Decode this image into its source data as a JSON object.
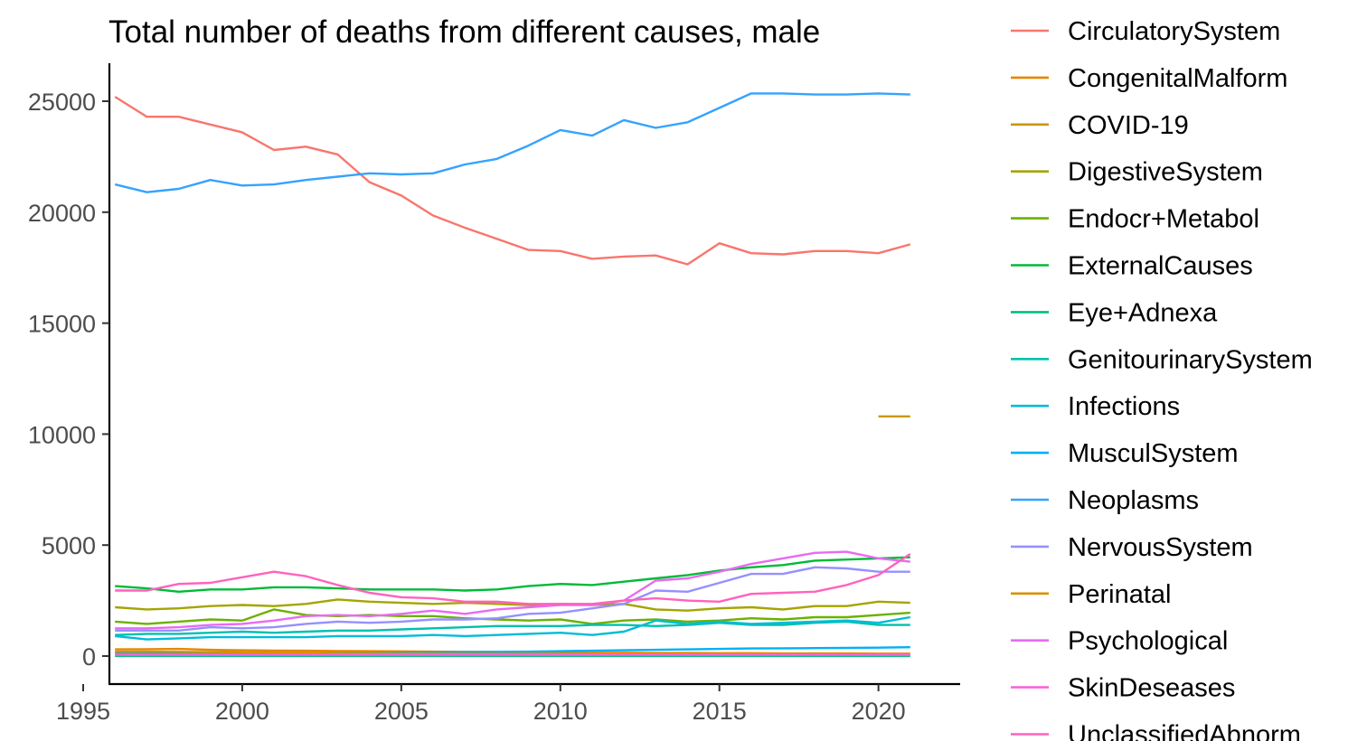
{
  "chart_data": {
    "type": "line",
    "title": "Total number of deaths from different causes, male",
    "xlabel": "",
    "ylabel": "",
    "xlim": [
      1995,
      2022
    ],
    "ylim": [
      -1000,
      26500
    ],
    "x_ticks": [
      1995,
      2000,
      2005,
      2010,
      2015,
      2020
    ],
    "y_ticks": [
      0,
      5000,
      10000,
      15000,
      20000,
      25000
    ],
    "grid": false,
    "legend_position": "right",
    "x": [
      1996,
      1997,
      1998,
      1999,
      2000,
      2001,
      2002,
      2003,
      2004,
      2005,
      2006,
      2007,
      2008,
      2009,
      2010,
      2011,
      2012,
      2013,
      2014,
      2015,
      2016,
      2017,
      2018,
      2019,
      2020,
      2021
    ],
    "series": [
      {
        "name": "CirculatorySystem",
        "color": "#F8766D",
        "values": [
          25200,
          24300,
          24300,
          23950,
          23600,
          22800,
          22950,
          22600,
          21350,
          20750,
          19850,
          19300,
          18800,
          18300,
          18250,
          17900,
          18000,
          18050,
          17650,
          18600,
          18150,
          18100,
          18250,
          18250,
          18150,
          18550
        ]
      },
      {
        "name": "CongenitalMalform",
        "color": "#E58700",
        "values": [
          300,
          310,
          320,
          280,
          260,
          250,
          240,
          230,
          220,
          210,
          200,
          190,
          180,
          170,
          160,
          150,
          150,
          140,
          140,
          130,
          130,
          120,
          120,
          120,
          110,
          110
        ]
      },
      {
        "name": "COVID-19",
        "color": "#C99800",
        "values": [
          null,
          null,
          null,
          null,
          null,
          null,
          null,
          null,
          null,
          null,
          null,
          null,
          null,
          null,
          null,
          null,
          null,
          null,
          null,
          null,
          null,
          null,
          null,
          null,
          10800,
          10800
        ]
      },
      {
        "name": "DigestiveSystem",
        "color": "#A3A500",
        "values": [
          2200,
          2100,
          2150,
          2250,
          2300,
          2250,
          2350,
          2550,
          2450,
          2400,
          2350,
          2400,
          2350,
          2300,
          2350,
          2300,
          2350,
          2100,
          2050,
          2150,
          2200,
          2100,
          2250,
          2250,
          2450,
          2400
        ]
      },
      {
        "name": "Endocr+Metabol",
        "color": "#6BB100",
        "values": [
          1550,
          1450,
          1550,
          1650,
          1600,
          2100,
          1850,
          1800,
          1850,
          1800,
          1800,
          1700,
          1650,
          1600,
          1650,
          1450,
          1600,
          1650,
          1550,
          1600,
          1700,
          1650,
          1750,
          1750,
          1850,
          1950
        ]
      },
      {
        "name": "ExternalCauses",
        "color": "#00BA38",
        "values": [
          3150,
          3050,
          2900,
          3000,
          3000,
          3100,
          3100,
          3050,
          3000,
          3000,
          3000,
          2950,
          3000,
          3150,
          3250,
          3200,
          3350,
          3500,
          3650,
          3850,
          4000,
          4100,
          4300,
          4350,
          4400,
          4450
        ]
      },
      {
        "name": "Eye+Adnexa",
        "color": "#00BF7D",
        "values": [
          5,
          5,
          5,
          5,
          5,
          5,
          5,
          5,
          5,
          5,
          5,
          5,
          5,
          5,
          5,
          5,
          5,
          5,
          5,
          5,
          5,
          5,
          5,
          5,
          5,
          5
        ]
      },
      {
        "name": "GenitourinarySystem",
        "color": "#00C0AF",
        "values": [
          950,
          1000,
          1000,
          1050,
          1100,
          1050,
          1100,
          1150,
          1150,
          1200,
          1250,
          1300,
          1350,
          1350,
          1350,
          1400,
          1400,
          1350,
          1400,
          1500,
          1400,
          1400,
          1500,
          1550,
          1400,
          1400
        ]
      },
      {
        "name": "Infections",
        "color": "#00BCD8",
        "values": [
          900,
          750,
          800,
          850,
          850,
          850,
          850,
          900,
          900,
          900,
          950,
          900,
          950,
          1000,
          1050,
          950,
          1100,
          1600,
          1450,
          1550,
          1450,
          1500,
          1550,
          1600,
          1500,
          1750
        ]
      },
      {
        "name": "MusculSystem",
        "color": "#00B0F6",
        "values": [
          120,
          120,
          130,
          130,
          130,
          140,
          140,
          150,
          150,
          160,
          170,
          180,
          190,
          200,
          220,
          240,
          260,
          280,
          300,
          320,
          340,
          350,
          360,
          370,
          380,
          400
        ]
      },
      {
        "name": "Neoplasms",
        "color": "#35A2FF",
        "values": [
          21250,
          20900,
          21050,
          21450,
          21200,
          21250,
          21450,
          21600,
          21750,
          21700,
          21750,
          22150,
          22400,
          23000,
          23700,
          23450,
          24150,
          23800,
          24050,
          24700,
          25350,
          25350,
          25300,
          25300,
          25350,
          25300
        ]
      },
      {
        "name": "NervousSystem",
        "color": "#9590FF",
        "values": [
          1150,
          1150,
          1150,
          1300,
          1250,
          1300,
          1450,
          1550,
          1500,
          1550,
          1650,
          1650,
          1700,
          1900,
          1950,
          2150,
          2350,
          2950,
          2900,
          3300,
          3700,
          3700,
          4000,
          3950,
          3800,
          3800
        ]
      },
      {
        "name": "Perinatal",
        "color": "#D89000",
        "values": [
          200,
          200,
          190,
          180,
          170,
          160,
          150,
          140,
          130,
          120,
          115,
          110,
          105,
          100,
          95,
          90,
          85,
          80,
          80,
          75,
          75,
          70,
          70,
          70,
          65,
          65
        ]
      },
      {
        "name": "Psychological",
        "color": "#E76BF3",
        "values": [
          1250,
          1250,
          1300,
          1400,
          1450,
          1600,
          1800,
          1850,
          1800,
          1900,
          2050,
          1900,
          2100,
          2200,
          2300,
          2300,
          2500,
          3400,
          3500,
          3800,
          4150,
          4400,
          4650,
          4700,
          4400,
          4250
        ]
      },
      {
        "name": "SkinDeseases",
        "color": "#FA62DB",
        "values": [
          60,
          60,
          60,
          60,
          60,
          60,
          60,
          60,
          60,
          60,
          60,
          60,
          60,
          60,
          60,
          60,
          60,
          60,
          60,
          60,
          60,
          60,
          60,
          60,
          60,
          60
        ]
      },
      {
        "name": "UnclassifiedAbnorm",
        "color": "#FF62BC",
        "values": [
          2950,
          2950,
          3250,
          3300,
          3550,
          3800,
          3600,
          3200,
          2850,
          2650,
          2600,
          2450,
          2450,
          2350,
          2350,
          2350,
          2500,
          2600,
          2500,
          2450,
          2800,
          2850,
          2900,
          3200,
          3650,
          4600
        ]
      }
    ]
  }
}
